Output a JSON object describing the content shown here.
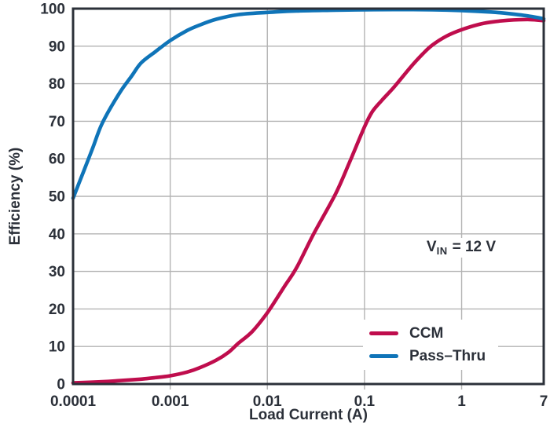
{
  "chart_data": {
    "type": "line",
    "title": "",
    "xlabel": "Load Current (A)",
    "ylabel": "Efficiency (%)",
    "x_scale": "log",
    "xlim": [
      0.0001,
      7
    ],
    "ylim": [
      0,
      100
    ],
    "y_ticks": [
      0,
      10,
      20,
      30,
      40,
      50,
      60,
      70,
      80,
      90,
      100
    ],
    "x_ticks": [
      {
        "value": 0.0001,
        "label": "0.0001"
      },
      {
        "value": 0.001,
        "label": "0.001"
      },
      {
        "value": 0.01,
        "label": "0.01"
      },
      {
        "value": 0.1,
        "label": "0.1"
      },
      {
        "value": 1,
        "label": "1"
      },
      {
        "value": 7,
        "label": "7"
      }
    ],
    "x_gridlines": [
      0.001,
      0.01,
      0.1,
      1
    ],
    "grid": true,
    "legend_position": "inside-bottom-right",
    "annotation": {
      "text": "VIN = 12 V",
      "pre": "V",
      "sub": "IN",
      "post": "= 12 V"
    },
    "colors": {
      "axis": "#2b3039",
      "grid": "#b3b3b3",
      "ccm": "#bf0d4d",
      "pass_thru": "#0f74b8",
      "background": "#ffffff"
    },
    "series": [
      {
        "name": "CCM",
        "color": "#bf0d4d",
        "points": [
          [
            0.0001,
            0.3
          ],
          [
            0.0002,
            0.6
          ],
          [
            0.0003,
            0.9
          ],
          [
            0.0005,
            1.3
          ],
          [
            0.0007,
            1.7
          ],
          [
            0.001,
            2.2
          ],
          [
            0.0015,
            3.2
          ],
          [
            0.002,
            4.3
          ],
          [
            0.003,
            6.4
          ],
          [
            0.004,
            8.5
          ],
          [
            0.005,
            10.8
          ],
          [
            0.007,
            14.0
          ],
          [
            0.01,
            19.0
          ],
          [
            0.015,
            26.0
          ],
          [
            0.02,
            31.0
          ],
          [
            0.03,
            40.0
          ],
          [
            0.05,
            50.5
          ],
          [
            0.07,
            59.0
          ],
          [
            0.1,
            68.5
          ],
          [
            0.12,
            72.5
          ],
          [
            0.15,
            75.5
          ],
          [
            0.2,
            79.0
          ],
          [
            0.3,
            84.5
          ],
          [
            0.4,
            88.0
          ],
          [
            0.5,
            90.3
          ],
          [
            0.7,
            92.7
          ],
          [
            1,
            94.4
          ],
          [
            1.5,
            95.8
          ],
          [
            2,
            96.4
          ],
          [
            3,
            96.9
          ],
          [
            5,
            97.1
          ],
          [
            7,
            96.8
          ]
        ]
      },
      {
        "name": "Pass–Thru",
        "color": "#0f74b8",
        "points": [
          [
            0.0001,
            49.5
          ],
          [
            0.00013,
            57.0
          ],
          [
            0.00016,
            63.0
          ],
          [
            0.0002,
            69.5
          ],
          [
            0.0003,
            77.5
          ],
          [
            0.0004,
            82.0
          ],
          [
            0.0005,
            85.5
          ],
          [
            0.0007,
            88.5
          ],
          [
            0.001,
            91.5
          ],
          [
            0.0015,
            94.2
          ],
          [
            0.002,
            95.6
          ],
          [
            0.003,
            97.2
          ],
          [
            0.005,
            98.4
          ],
          [
            0.01,
            99.0
          ],
          [
            0.02,
            99.4
          ],
          [
            0.05,
            99.6
          ],
          [
            0.1,
            99.7
          ],
          [
            0.2,
            99.75
          ],
          [
            0.5,
            99.7
          ],
          [
            1,
            99.5
          ],
          [
            2,
            99.1
          ],
          [
            3,
            98.7
          ],
          [
            5,
            98.0
          ],
          [
            7,
            97.3
          ]
        ]
      }
    ]
  }
}
